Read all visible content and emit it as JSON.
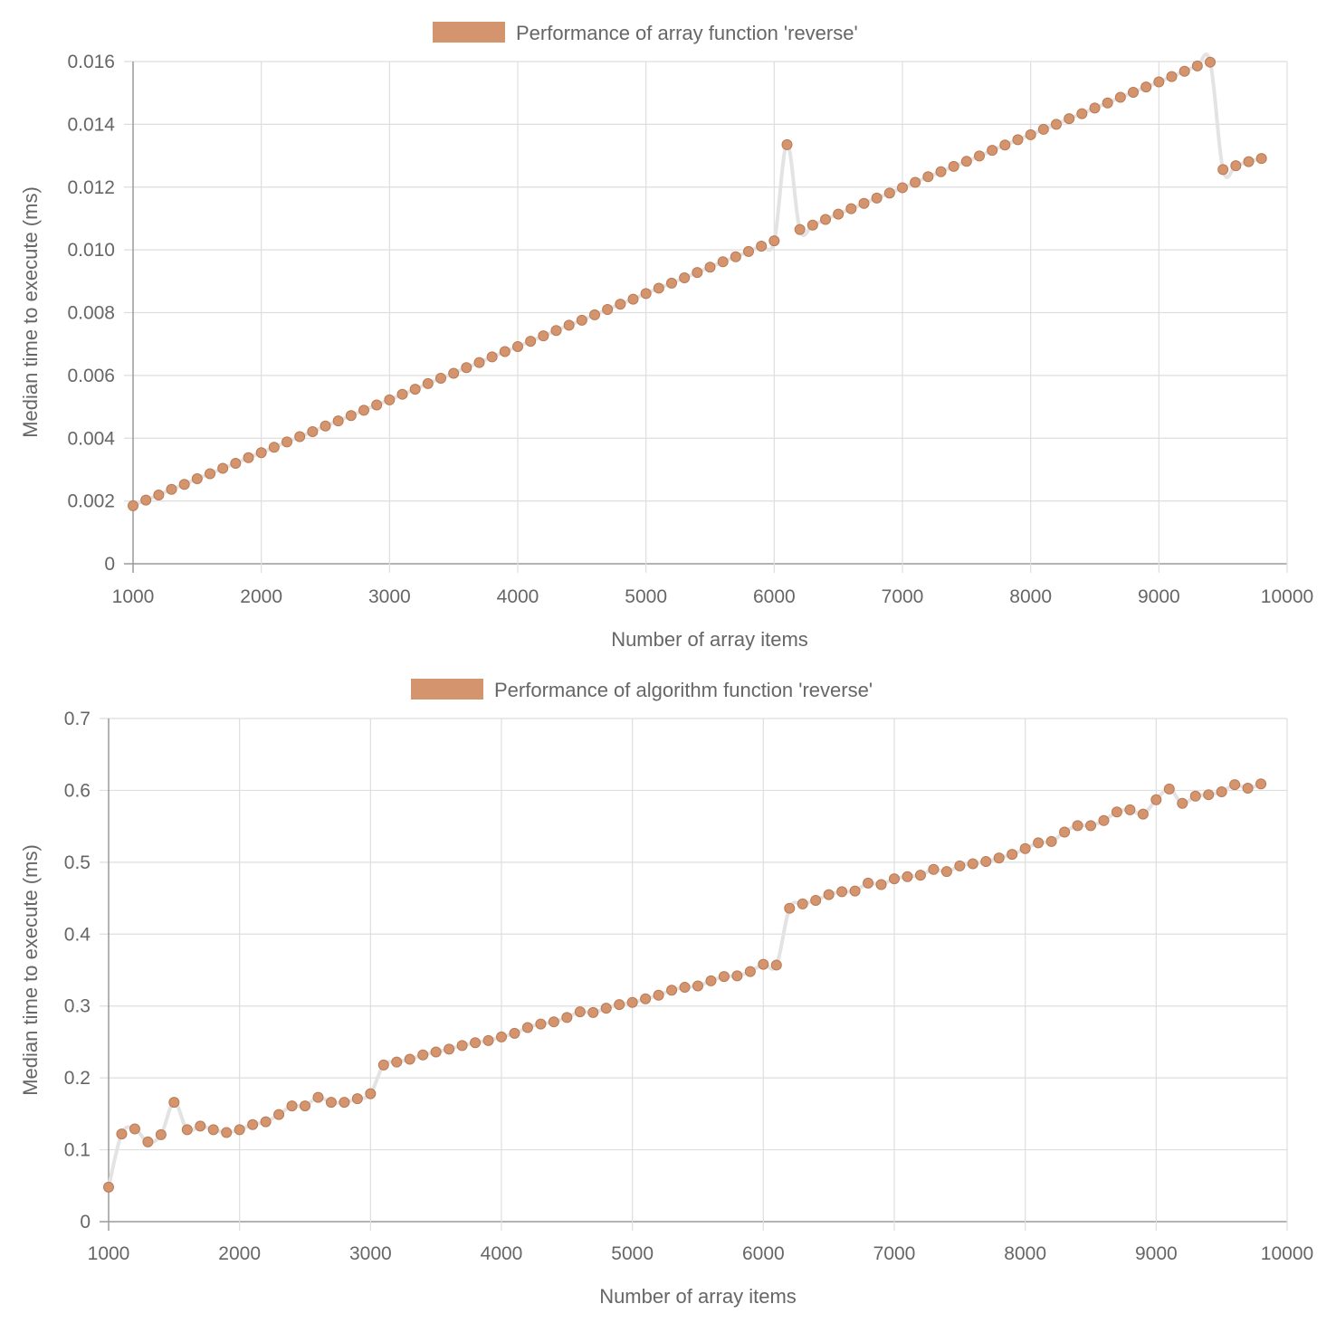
{
  "chart_data": [
    {
      "type": "line",
      "legend": {
        "label": "Performance of array function 'reverse'",
        "position": "top-center",
        "color": "#d4956e"
      },
      "xlabel": "Number of array items",
      "ylabel": "Median time to execute (ms)",
      "xlim": [
        1000,
        10000
      ],
      "ylim": [
        0,
        0.016
      ],
      "xticks": [
        "1000",
        "2000",
        "3000",
        "4000",
        "5000",
        "6000",
        "7000",
        "8000",
        "9000",
        "10000"
      ],
      "yticks": [
        "0",
        "0.002",
        "0.004",
        "0.006",
        "0.008",
        "0.010",
        "0.012",
        "0.014",
        "0.016"
      ],
      "grid": true,
      "line_color": "#e3e3e3",
      "point_color": "#d4956e",
      "point_border": "#b97a55",
      "x": [
        1000,
        1100,
        1200,
        1300,
        1400,
        1500,
        1600,
        1700,
        1800,
        1900,
        2000,
        2100,
        2200,
        2300,
        2400,
        2500,
        2600,
        2700,
        2800,
        2900,
        3000,
        3100,
        3200,
        3300,
        3400,
        3500,
        3600,
        3700,
        3800,
        3900,
        4000,
        4100,
        4200,
        4300,
        4400,
        4500,
        4600,
        4700,
        4800,
        4900,
        5000,
        5100,
        5200,
        5300,
        5400,
        5500,
        5600,
        5700,
        5800,
        5900,
        6000,
        6100,
        6200,
        6300,
        6400,
        6500,
        6600,
        6700,
        6800,
        6900,
        7000,
        7100,
        7200,
        7300,
        7400,
        7500,
        7600,
        7700,
        7800,
        7900,
        8000,
        8100,
        8200,
        8300,
        8400,
        8500,
        8600,
        8700,
        8800,
        8900,
        9000,
        9100,
        9200,
        9300,
        9400,
        9500,
        9600,
        9700,
        9800
      ],
      "series": [
        {
          "name": "Performance of array function 'reverse'",
          "values": [
            0.00185,
            0.00203,
            0.00219,
            0.00237,
            0.00253,
            0.00271,
            0.00287,
            0.00304,
            0.0032,
            0.00338,
            0.00354,
            0.00371,
            0.00388,
            0.00405,
            0.00421,
            0.00439,
            0.00455,
            0.00472,
            0.00489,
            0.00506,
            0.00522,
            0.0054,
            0.00556,
            0.00574,
            0.00591,
            0.00607,
            0.00625,
            0.00641,
            0.00659,
            0.00676,
            0.00692,
            0.00709,
            0.00726,
            0.00743,
            0.0076,
            0.00776,
            0.00793,
            0.0081,
            0.00827,
            0.00843,
            0.00861,
            0.00878,
            0.00894,
            0.00911,
            0.00928,
            0.00945,
            0.00962,
            0.00978,
            0.00995,
            0.01012,
            0.01029,
            0.01335,
            0.01065,
            0.01079,
            0.01097,
            0.01114,
            0.01131,
            0.01148,
            0.01165,
            0.01181,
            0.01198,
            0.01215,
            0.01233,
            0.01249,
            0.01266,
            0.01282,
            0.01299,
            0.01317,
            0.01334,
            0.01351,
            0.01367,
            0.01384,
            0.014,
            0.01418,
            0.01434,
            0.01452,
            0.01468,
            0.01486,
            0.01502,
            0.01519,
            0.01535,
            0.01552,
            0.01569,
            0.01586,
            0.01598,
            0.01256,
            0.01268,
            0.01281,
            0.01291
          ]
        }
      ]
    },
    {
      "type": "line",
      "legend": {
        "label": "Performance of algorithm function 'reverse'",
        "position": "top-center",
        "color": "#d4956e"
      },
      "xlabel": "Number of array items",
      "ylabel": "Median time to execute (ms)",
      "xlim": [
        1000,
        10000
      ],
      "ylim": [
        0,
        0.7
      ],
      "xticks": [
        "1000",
        "2000",
        "3000",
        "4000",
        "5000",
        "6000",
        "7000",
        "8000",
        "9000",
        "10000"
      ],
      "yticks": [
        "0",
        "0.1",
        "0.2",
        "0.3",
        "0.4",
        "0.5",
        "0.6",
        "0.7"
      ],
      "grid": true,
      "line_color": "#e3e3e3",
      "point_color": "#d4956e",
      "point_border": "#b97a55",
      "x": [
        1000,
        1100,
        1200,
        1300,
        1400,
        1500,
        1600,
        1700,
        1800,
        1900,
        2000,
        2100,
        2200,
        2300,
        2400,
        2500,
        2600,
        2700,
        2800,
        2900,
        3000,
        3100,
        3200,
        3300,
        3400,
        3500,
        3600,
        3700,
        3800,
        3900,
        4000,
        4100,
        4200,
        4300,
        4400,
        4500,
        4600,
        4700,
        4800,
        4900,
        5000,
        5100,
        5200,
        5300,
        5400,
        5500,
        5600,
        5700,
        5800,
        5900,
        6000,
        6100,
        6200,
        6300,
        6400,
        6500,
        6600,
        6700,
        6800,
        6900,
        7000,
        7100,
        7200,
        7300,
        7400,
        7500,
        7600,
        7700,
        7800,
        7900,
        8000,
        8100,
        8200,
        8300,
        8400,
        8500,
        8600,
        8700,
        8800,
        8900,
        9000,
        9100,
        9200,
        9300,
        9400,
        9500,
        9600,
        9700,
        9800
      ],
      "series": [
        {
          "name": "Performance of algorithm function 'reverse'",
          "values": [
            0.048,
            0.122,
            0.129,
            0.111,
            0.121,
            0.166,
            0.128,
            0.133,
            0.128,
            0.124,
            0.128,
            0.135,
            0.139,
            0.149,
            0.161,
            0.161,
            0.173,
            0.166,
            0.166,
            0.171,
            0.178,
            0.218,
            0.222,
            0.226,
            0.232,
            0.236,
            0.24,
            0.245,
            0.249,
            0.252,
            0.257,
            0.262,
            0.27,
            0.275,
            0.278,
            0.284,
            0.292,
            0.291,
            0.297,
            0.302,
            0.305,
            0.31,
            0.315,
            0.322,
            0.326,
            0.328,
            0.335,
            0.341,
            0.342,
            0.348,
            0.358,
            0.357,
            0.436,
            0.442,
            0.447,
            0.455,
            0.459,
            0.46,
            0.471,
            0.469,
            0.477,
            0.48,
            0.482,
            0.49,
            0.487,
            0.495,
            0.498,
            0.501,
            0.506,
            0.511,
            0.519,
            0.527,
            0.529,
            0.542,
            0.551,
            0.551,
            0.558,
            0.57,
            0.573,
            0.567,
            0.587,
            0.602,
            0.582,
            0.592,
            0.594,
            0.598,
            0.608,
            0.603,
            0.609
          ]
        }
      ]
    }
  ]
}
